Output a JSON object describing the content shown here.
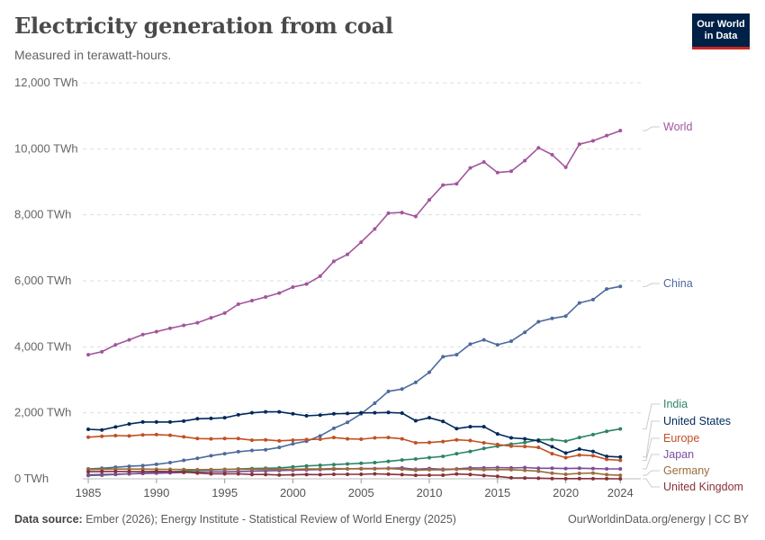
{
  "header": {
    "title": "Electricity generation from coal",
    "subtitle": "Measured in terawatt-hours."
  },
  "logo": {
    "line1": "Our World",
    "line2": "in Data",
    "bg": "#002147",
    "accent": "#ce261e"
  },
  "footer": {
    "source_label": "Data source:",
    "source_text": "Ember (2026); Energy Institute - Statistical Review of World Energy (2025)",
    "right": "OurWorldinData.org/energy | CC BY"
  },
  "chart_data": {
    "type": "line",
    "title": "Electricity generation from coal",
    "subtitle": "Measured in terawatt-hours.",
    "x_ticks": [
      1985,
      1990,
      1995,
      2000,
      2005,
      2010,
      2015,
      2020,
      2024
    ],
    "y_ticks": [
      0,
      2000,
      4000,
      6000,
      8000,
      10000,
      12000
    ],
    "y_tick_labels": [
      "0 TWh",
      "2,000 TWh",
      "4,000 TWh",
      "6,000 TWh",
      "8,000 TWh",
      "10,000 TWh",
      "12,000 TWh"
    ],
    "xlim": [
      1984.6,
      2025.5
    ],
    "ylim": [
      0,
      12000
    ],
    "grid": "horizontal dashed",
    "legend": "end-of-line labels at right",
    "x": [
      1985,
      1986,
      1987,
      1988,
      1989,
      1990,
      1991,
      1992,
      1993,
      1994,
      1995,
      1996,
      1997,
      1998,
      1999,
      2000,
      2001,
      2002,
      2003,
      2004,
      2005,
      2006,
      2007,
      2008,
      2009,
      2010,
      2011,
      2012,
      2013,
      2014,
      2015,
      2016,
      2017,
      2018,
      2019,
      2020,
      2021,
      2022,
      2023,
      2024
    ],
    "series": [
      {
        "name": "World",
        "color": "#a2559c",
        "values": [
          3760,
          3850,
          4060,
          4210,
          4370,
          4460,
          4560,
          4650,
          4730,
          4880,
          5020,
          5290,
          5400,
          5510,
          5630,
          5810,
          5900,
          6140,
          6590,
          6800,
          7170,
          7570,
          8050,
          8070,
          7950,
          8450,
          8900,
          8940,
          9420,
          9600,
          9280,
          9320,
          9640,
          10030,
          9820,
          9440,
          10140,
          10240,
          10400,
          10550
        ]
      },
      {
        "name": "China",
        "color": "#4c6a9c",
        "values": [
          300,
          320,
          350,
          380,
          400,
          440,
          490,
          560,
          620,
          700,
          760,
          820,
          860,
          880,
          950,
          1060,
          1140,
          1300,
          1530,
          1710,
          1970,
          2290,
          2650,
          2720,
          2920,
          3230,
          3700,
          3760,
          4080,
          4210,
          4060,
          4170,
          4440,
          4760,
          4860,
          4930,
          5330,
          5430,
          5750,
          5830
        ]
      },
      {
        "name": "India",
        "color": "#2c8465",
        "values": [
          100,
          110,
          130,
          150,
          170,
          190,
          210,
          230,
          250,
          270,
          280,
          300,
          310,
          320,
          330,
          360,
          390,
          410,
          430,
          450,
          470,
          490,
          530,
          570,
          600,
          640,
          680,
          760,
          830,
          920,
          990,
          1050,
          1100,
          1180,
          1190,
          1140,
          1250,
          1340,
          1440,
          1510
        ]
      },
      {
        "name": "United States",
        "color": "#00295b",
        "values": [
          1500,
          1480,
          1570,
          1660,
          1720,
          1720,
          1720,
          1750,
          1820,
          1830,
          1850,
          1940,
          2000,
          2030,
          2030,
          1970,
          1910,
          1930,
          1970,
          1980,
          2000,
          2000,
          2010,
          1990,
          1760,
          1850,
          1740,
          1520,
          1580,
          1580,
          1360,
          1240,
          1210,
          1150,
          970,
          780,
          900,
          830,
          680,
          660
        ]
      },
      {
        "name": "Europe",
        "color": "#c15023",
        "values": [
          1260,
          1290,
          1310,
          1300,
          1330,
          1340,
          1320,
          1270,
          1220,
          1210,
          1220,
          1220,
          1170,
          1180,
          1150,
          1170,
          1190,
          1200,
          1250,
          1210,
          1200,
          1240,
          1250,
          1210,
          1090,
          1100,
          1130,
          1180,
          1160,
          1090,
          1040,
          990,
          980,
          950,
          760,
          640,
          720,
          700,
          590,
          560
        ]
      },
      {
        "name": "Japan",
        "color": "#7c4c9e",
        "values": [
          120,
          130,
          140,
          150,
          160,
          170,
          180,
          190,
          200,
          210,
          210,
          220,
          230,
          240,
          250,
          260,
          270,
          280,
          290,
          300,
          310,
          310,
          320,
          330,
          290,
          310,
          290,
          300,
          330,
          330,
          340,
          330,
          340,
          320,
          320,
          310,
          320,
          310,
          300,
          300
        ]
      },
      {
        "name": "Germany",
        "color": "#996d39",
        "values": [
          280,
          290,
          295,
          295,
          295,
          290,
          285,
          280,
          275,
          280,
          285,
          290,
          290,
          290,
          285,
          290,
          300,
          300,
          310,
          305,
          300,
          300,
          310,
          290,
          255,
          275,
          270,
          285,
          290,
          275,
          280,
          275,
          255,
          230,
          170,
          135,
          165,
          175,
          125,
          105
        ]
      },
      {
        "name": "United Kingdom",
        "color": "#883039",
        "values": [
          215,
          220,
          225,
          220,
          220,
          225,
          220,
          205,
          175,
          150,
          150,
          150,
          130,
          130,
          115,
          120,
          130,
          125,
          135,
          135,
          135,
          150,
          140,
          125,
          105,
          110,
          110,
          145,
          130,
          100,
          75,
          30,
          25,
          18,
          8,
          5,
          6,
          5,
          3,
          1
        ]
      }
    ],
    "end_labels": [
      "World",
      "China",
      "India",
      "United States",
      "Europe",
      "Japan",
      "Germany",
      "United Kingdom"
    ]
  }
}
